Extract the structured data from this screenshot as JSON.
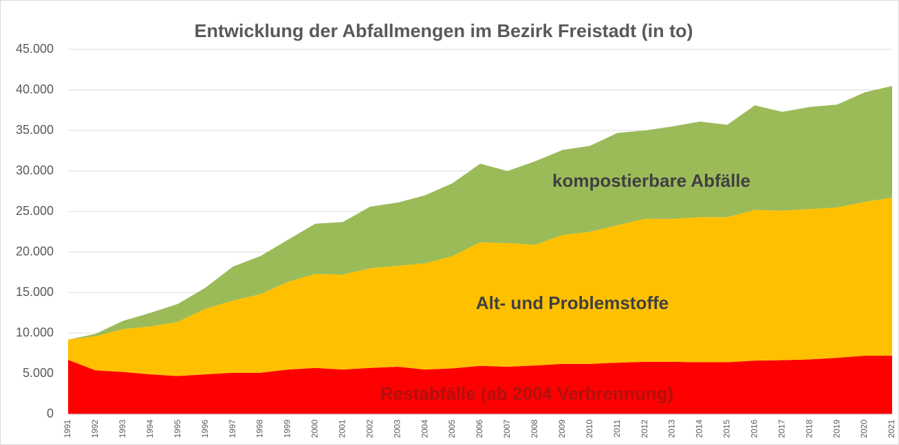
{
  "chart_data": {
    "type": "stacked_area",
    "title": "Entwicklung der Abfallmengen im Bezirk Freistadt (in to)",
    "categories": [
      "1991",
      "1992",
      "1993",
      "1994",
      "1995",
      "1996",
      "1997",
      "1998",
      "1999",
      "2000",
      "2001",
      "2002",
      "2003",
      "2004",
      "2005",
      "2006",
      "2007",
      "2008",
      "2009",
      "2010",
      "2011",
      "2012",
      "2013",
      "2014",
      "2015",
      "2016",
      "2017",
      "2018",
      "2019",
      "2020",
      "2021"
    ],
    "series": [
      {
        "name": "Restabfälle (ab 2004 Verbrennung)",
        "color": "#ff0000",
        "values": [
          6700,
          5400,
          5200,
          4900,
          4700,
          4900,
          5100,
          5100,
          5500,
          5700,
          5500,
          5700,
          5850,
          5500,
          5650,
          5950,
          5850,
          6000,
          6200,
          6200,
          6350,
          6450,
          6450,
          6400,
          6400,
          6600,
          6650,
          6750,
          6950,
          7200,
          7200
        ]
      },
      {
        "name": "Alt- und Problemstoffe",
        "color": "#ffc000",
        "values": [
          2500,
          4200,
          5300,
          5900,
          6700,
          8100,
          8900,
          9700,
          10800,
          11600,
          11700,
          12300,
          12450,
          13100,
          13850,
          15250,
          15250,
          14900,
          15900,
          16300,
          16950,
          17650,
          17650,
          17900,
          17900,
          18600,
          18450,
          18550,
          18550,
          19000,
          19500
        ]
      },
      {
        "name": "kompostierbare Abfälle",
        "color": "#9bbb59",
        "values": [
          0,
          300,
          1000,
          1700,
          2200,
          2600,
          4200,
          4700,
          5200,
          6200,
          6500,
          7600,
          7800,
          8400,
          9000,
          9700,
          8900,
          10300,
          10500,
          10600,
          11400,
          10900,
          11400,
          11800,
          11400,
          12900,
          12200,
          12600,
          12700,
          13500,
          13800
        ]
      }
    ],
    "ylim": [
      0,
      45000
    ],
    "yticks": [
      0,
      {
        "value": 5000,
        "label": "5.000"
      },
      {
        "value": 10000,
        "label": "10.000"
      },
      {
        "value": 15000,
        "label": "15.000"
      },
      {
        "value": 20000,
        "label": "20.000"
      },
      {
        "value": 25000,
        "label": "25.000"
      },
      {
        "value": 30000,
        "label": "30.000"
      },
      {
        "value": 35000,
        "label": "35.000"
      },
      {
        "value": 40000,
        "label": "40.000"
      },
      {
        "value": 45000,
        "label": "45.000"
      }
    ],
    "grid": true
  }
}
